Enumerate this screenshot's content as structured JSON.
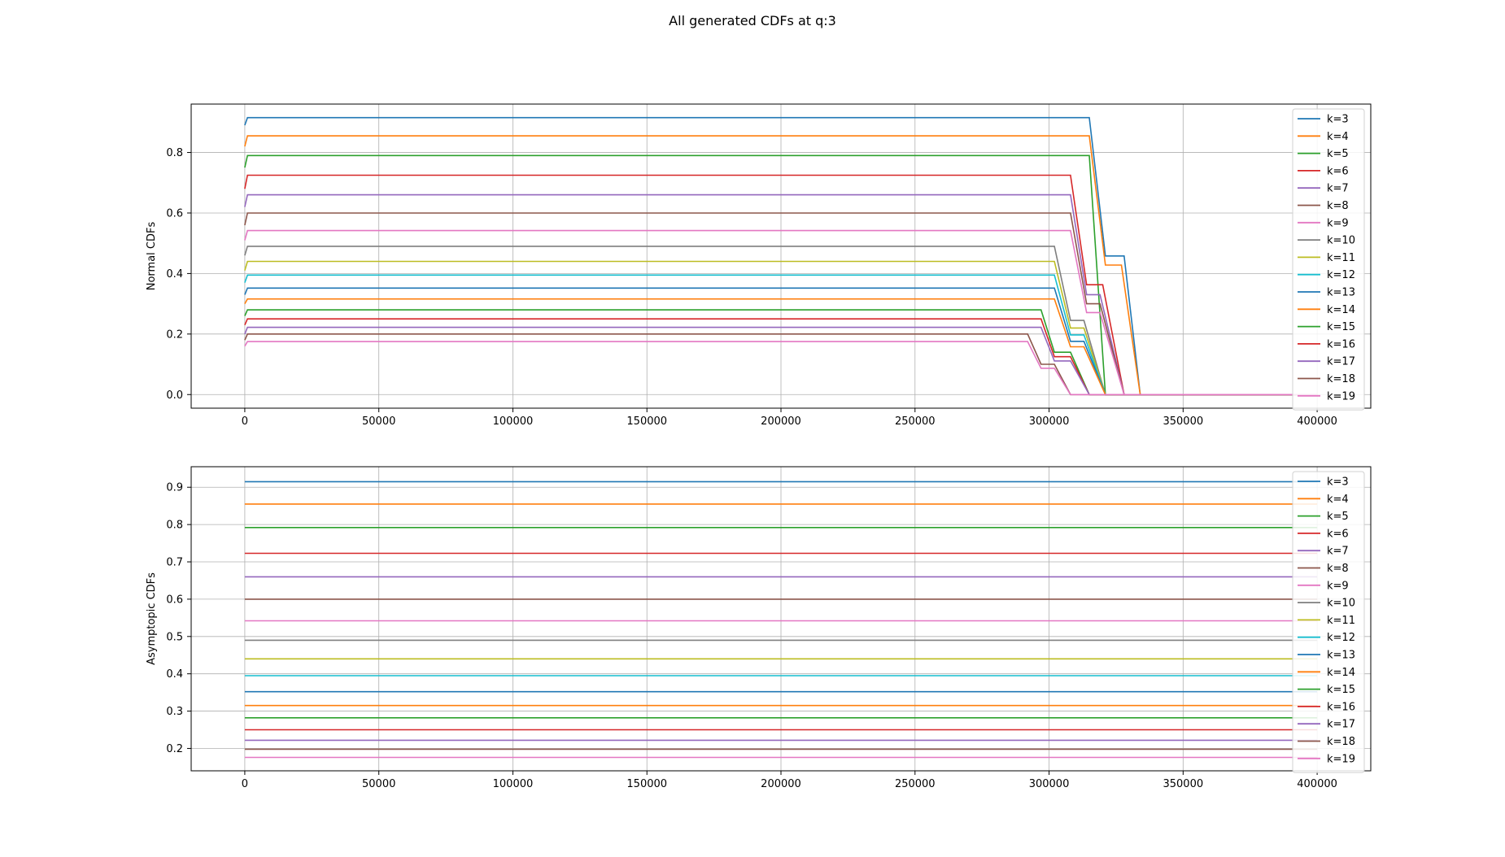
{
  "figure": {
    "title": "All generated CDFs at q:3"
  },
  "colors": [
    "#1f77b4",
    "#ff7f0e",
    "#2ca02c",
    "#d62728",
    "#9467bd",
    "#8c564b",
    "#e377c2",
    "#7f7f7f",
    "#bcbd22",
    "#17becf",
    "#1f77b4",
    "#ff7f0e",
    "#2ca02c",
    "#d62728",
    "#9467bd",
    "#8c564b",
    "#e377c2"
  ],
  "chart_data": [
    {
      "type": "line",
      "title": "",
      "xlabel": "",
      "ylabel": "Normal CDFs",
      "xlim": [
        -20000,
        420000
      ],
      "ylim": [
        -0.045,
        0.96
      ],
      "xticks": [
        0,
        50000,
        100000,
        150000,
        200000,
        250000,
        300000,
        350000,
        400000
      ],
      "yticks": [
        0.0,
        0.2,
        0.4,
        0.6,
        0.8
      ],
      "ytick_decimals": 1,
      "grid": true,
      "legend": "top-right",
      "series": [
        {
          "name": "k=3",
          "x": [
            0,
            1000,
            315000,
            321000,
            328000,
            334000,
            400000
          ],
          "y": [
            0.89,
            0.915,
            0.915,
            0.458,
            0.458,
            0.0,
            0.0
          ]
        },
        {
          "name": "k=4",
          "x": [
            0,
            1000,
            315000,
            321000,
            327000,
            334000,
            400000
          ],
          "y": [
            0.82,
            0.855,
            0.855,
            0.428,
            0.428,
            0.0,
            0.0
          ]
        },
        {
          "name": "k=5",
          "x": [
            0,
            1000,
            315000,
            321000,
            400000
          ],
          "y": [
            0.75,
            0.79,
            0.79,
            0.0,
            0.0
          ]
        },
        {
          "name": "k=6",
          "x": [
            0,
            1000,
            308000,
            314000,
            320000,
            328000,
            400000
          ],
          "y": [
            0.68,
            0.725,
            0.725,
            0.363,
            0.363,
            0.0,
            0.0
          ]
        },
        {
          "name": "k=7",
          "x": [
            0,
            1000,
            308000,
            314000,
            319000,
            328000,
            400000
          ],
          "y": [
            0.62,
            0.66,
            0.66,
            0.33,
            0.33,
            0.0,
            0.0
          ]
        },
        {
          "name": "k=8",
          "x": [
            0,
            1000,
            308000,
            314000,
            319000,
            328000,
            400000
          ],
          "y": [
            0.56,
            0.6,
            0.6,
            0.3,
            0.3,
            0.0,
            0.0
          ]
        },
        {
          "name": "k=9",
          "x": [
            0,
            1000,
            308000,
            314000,
            319000,
            328000,
            400000
          ],
          "y": [
            0.51,
            0.542,
            0.542,
            0.271,
            0.271,
            0.0,
            0.0
          ]
        },
        {
          "name": "k=10",
          "x": [
            0,
            1000,
            302000,
            308000,
            313000,
            321000,
            400000
          ],
          "y": [
            0.46,
            0.49,
            0.49,
            0.245,
            0.245,
            0.0,
            0.0
          ]
        },
        {
          "name": "k=11",
          "x": [
            0,
            1000,
            302000,
            308000,
            313000,
            321000,
            400000
          ],
          "y": [
            0.41,
            0.44,
            0.44,
            0.22,
            0.22,
            0.0,
            0.0
          ]
        },
        {
          "name": "k=12",
          "x": [
            0,
            1000,
            302000,
            308000,
            313000,
            321000,
            400000
          ],
          "y": [
            0.37,
            0.395,
            0.395,
            0.197,
            0.197,
            0.0,
            0.0
          ]
        },
        {
          "name": "k=13",
          "x": [
            0,
            1000,
            302000,
            308000,
            313000,
            321000,
            400000
          ],
          "y": [
            0.33,
            0.352,
            0.352,
            0.176,
            0.176,
            0.0,
            0.0
          ]
        },
        {
          "name": "k=14",
          "x": [
            0,
            1000,
            302000,
            308000,
            313000,
            321000,
            400000
          ],
          "y": [
            0.3,
            0.316,
            0.316,
            0.158,
            0.158,
            0.0,
            0.0
          ]
        },
        {
          "name": "k=15",
          "x": [
            0,
            1000,
            297000,
            302000,
            308000,
            315000,
            400000
          ],
          "y": [
            0.26,
            0.28,
            0.28,
            0.14,
            0.14,
            0.0,
            0.0
          ]
        },
        {
          "name": "k=16",
          "x": [
            0,
            1000,
            297000,
            302000,
            308000,
            315000,
            400000
          ],
          "y": [
            0.23,
            0.25,
            0.25,
            0.125,
            0.125,
            0.0,
            0.0
          ]
        },
        {
          "name": "k=17",
          "x": [
            0,
            1000,
            297000,
            302000,
            308000,
            315000,
            400000
          ],
          "y": [
            0.2,
            0.222,
            0.222,
            0.111,
            0.111,
            0.0,
            0.0
          ]
        },
        {
          "name": "k=18",
          "x": [
            0,
            1000,
            292000,
            297000,
            302000,
            308000,
            400000
          ],
          "y": [
            0.18,
            0.2,
            0.2,
            0.1,
            0.1,
            0.0,
            0.0
          ]
        },
        {
          "name": "k=19",
          "x": [
            0,
            1000,
            292000,
            297000,
            302000,
            308000,
            400000
          ],
          "y": [
            0.16,
            0.175,
            0.175,
            0.087,
            0.087,
            0.0,
            0.0
          ]
        }
      ]
    },
    {
      "type": "line",
      "title": "",
      "xlabel": "",
      "ylabel": "Asymptopic CDFs",
      "xlim": [
        -20000,
        420000
      ],
      "ylim": [
        0.14,
        0.955
      ],
      "xticks": [
        0,
        50000,
        100000,
        150000,
        200000,
        250000,
        300000,
        350000,
        400000
      ],
      "yticks": [
        0.2,
        0.3,
        0.4,
        0.5,
        0.6,
        0.7,
        0.8,
        0.9
      ],
      "ytick_decimals": 1,
      "grid": true,
      "legend": "top-right",
      "series": [
        {
          "name": "k=3",
          "x": [
            0,
            400000
          ],
          "y": [
            0.915,
            0.915
          ]
        },
        {
          "name": "k=4",
          "x": [
            0,
            400000
          ],
          "y": [
            0.855,
            0.855
          ]
        },
        {
          "name": "k=5",
          "x": [
            0,
            400000
          ],
          "y": [
            0.792,
            0.792
          ]
        },
        {
          "name": "k=6",
          "x": [
            0,
            400000
          ],
          "y": [
            0.723,
            0.723
          ]
        },
        {
          "name": "k=7",
          "x": [
            0,
            400000
          ],
          "y": [
            0.66,
            0.66
          ]
        },
        {
          "name": "k=8",
          "x": [
            0,
            400000
          ],
          "y": [
            0.6,
            0.6
          ]
        },
        {
          "name": "k=9",
          "x": [
            0,
            400000
          ],
          "y": [
            0.542,
            0.542
          ]
        },
        {
          "name": "k=10",
          "x": [
            0,
            400000
          ],
          "y": [
            0.49,
            0.49
          ]
        },
        {
          "name": "k=11",
          "x": [
            0,
            400000
          ],
          "y": [
            0.44,
            0.44
          ]
        },
        {
          "name": "k=12",
          "x": [
            0,
            400000
          ],
          "y": [
            0.395,
            0.395
          ]
        },
        {
          "name": "k=13",
          "x": [
            0,
            400000
          ],
          "y": [
            0.352,
            0.352
          ]
        },
        {
          "name": "k=14",
          "x": [
            0,
            400000
          ],
          "y": [
            0.315,
            0.315
          ]
        },
        {
          "name": "k=15",
          "x": [
            0,
            400000
          ],
          "y": [
            0.282,
            0.282
          ]
        },
        {
          "name": "k=16",
          "x": [
            0,
            400000
          ],
          "y": [
            0.25,
            0.25
          ]
        },
        {
          "name": "k=17",
          "x": [
            0,
            400000
          ],
          "y": [
            0.222,
            0.222
          ]
        },
        {
          "name": "k=18",
          "x": [
            0,
            400000
          ],
          "y": [
            0.198,
            0.198
          ]
        },
        {
          "name": "k=19",
          "x": [
            0,
            400000
          ],
          "y": [
            0.176,
            0.176
          ]
        }
      ]
    }
  ]
}
